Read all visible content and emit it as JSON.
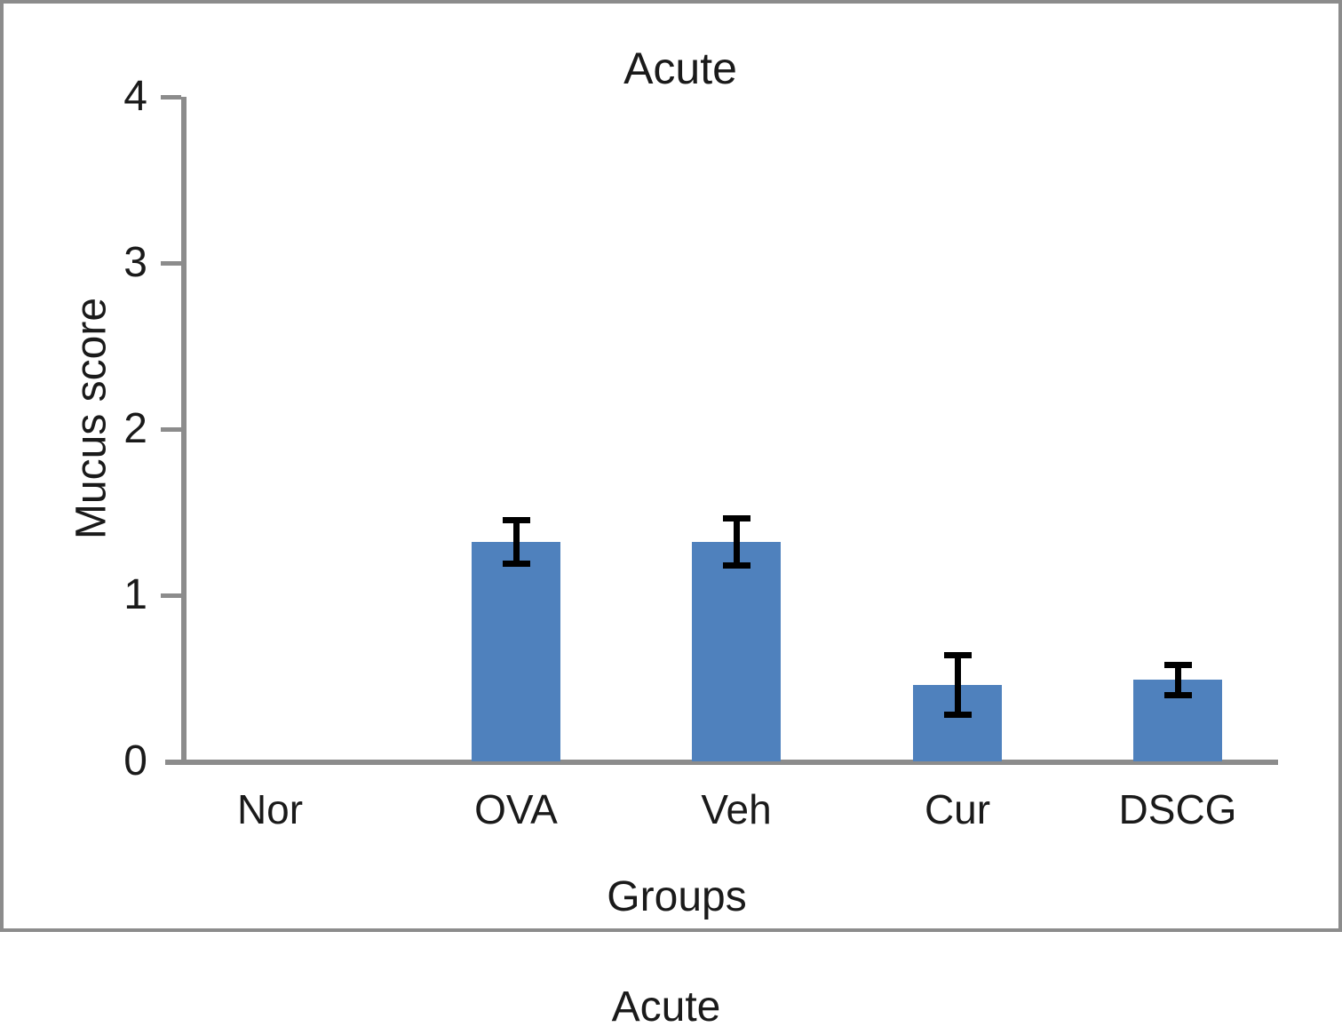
{
  "caption": "Acute",
  "chart_data": {
    "type": "bar",
    "title": "Acute",
    "xlabel": "Groups",
    "ylabel": "Mucus score",
    "categories": [
      "Nor",
      "OVA",
      "Veh",
      "Cur",
      "DSCG"
    ],
    "values": [
      0,
      1.32,
      1.32,
      0.46,
      0.49
    ],
    "errors": [
      0,
      0.15,
      0.16,
      0.2,
      0.11
    ],
    "ylim": [
      0,
      4
    ],
    "yticks": [
      0,
      1,
      2,
      3,
      4
    ],
    "grid": false,
    "legend_position": "none",
    "bar_color": "#4f81bd",
    "axis_color": "#8c8c8c",
    "error_bar_color": "#000000",
    "frame_color": "#8c8c8c"
  }
}
